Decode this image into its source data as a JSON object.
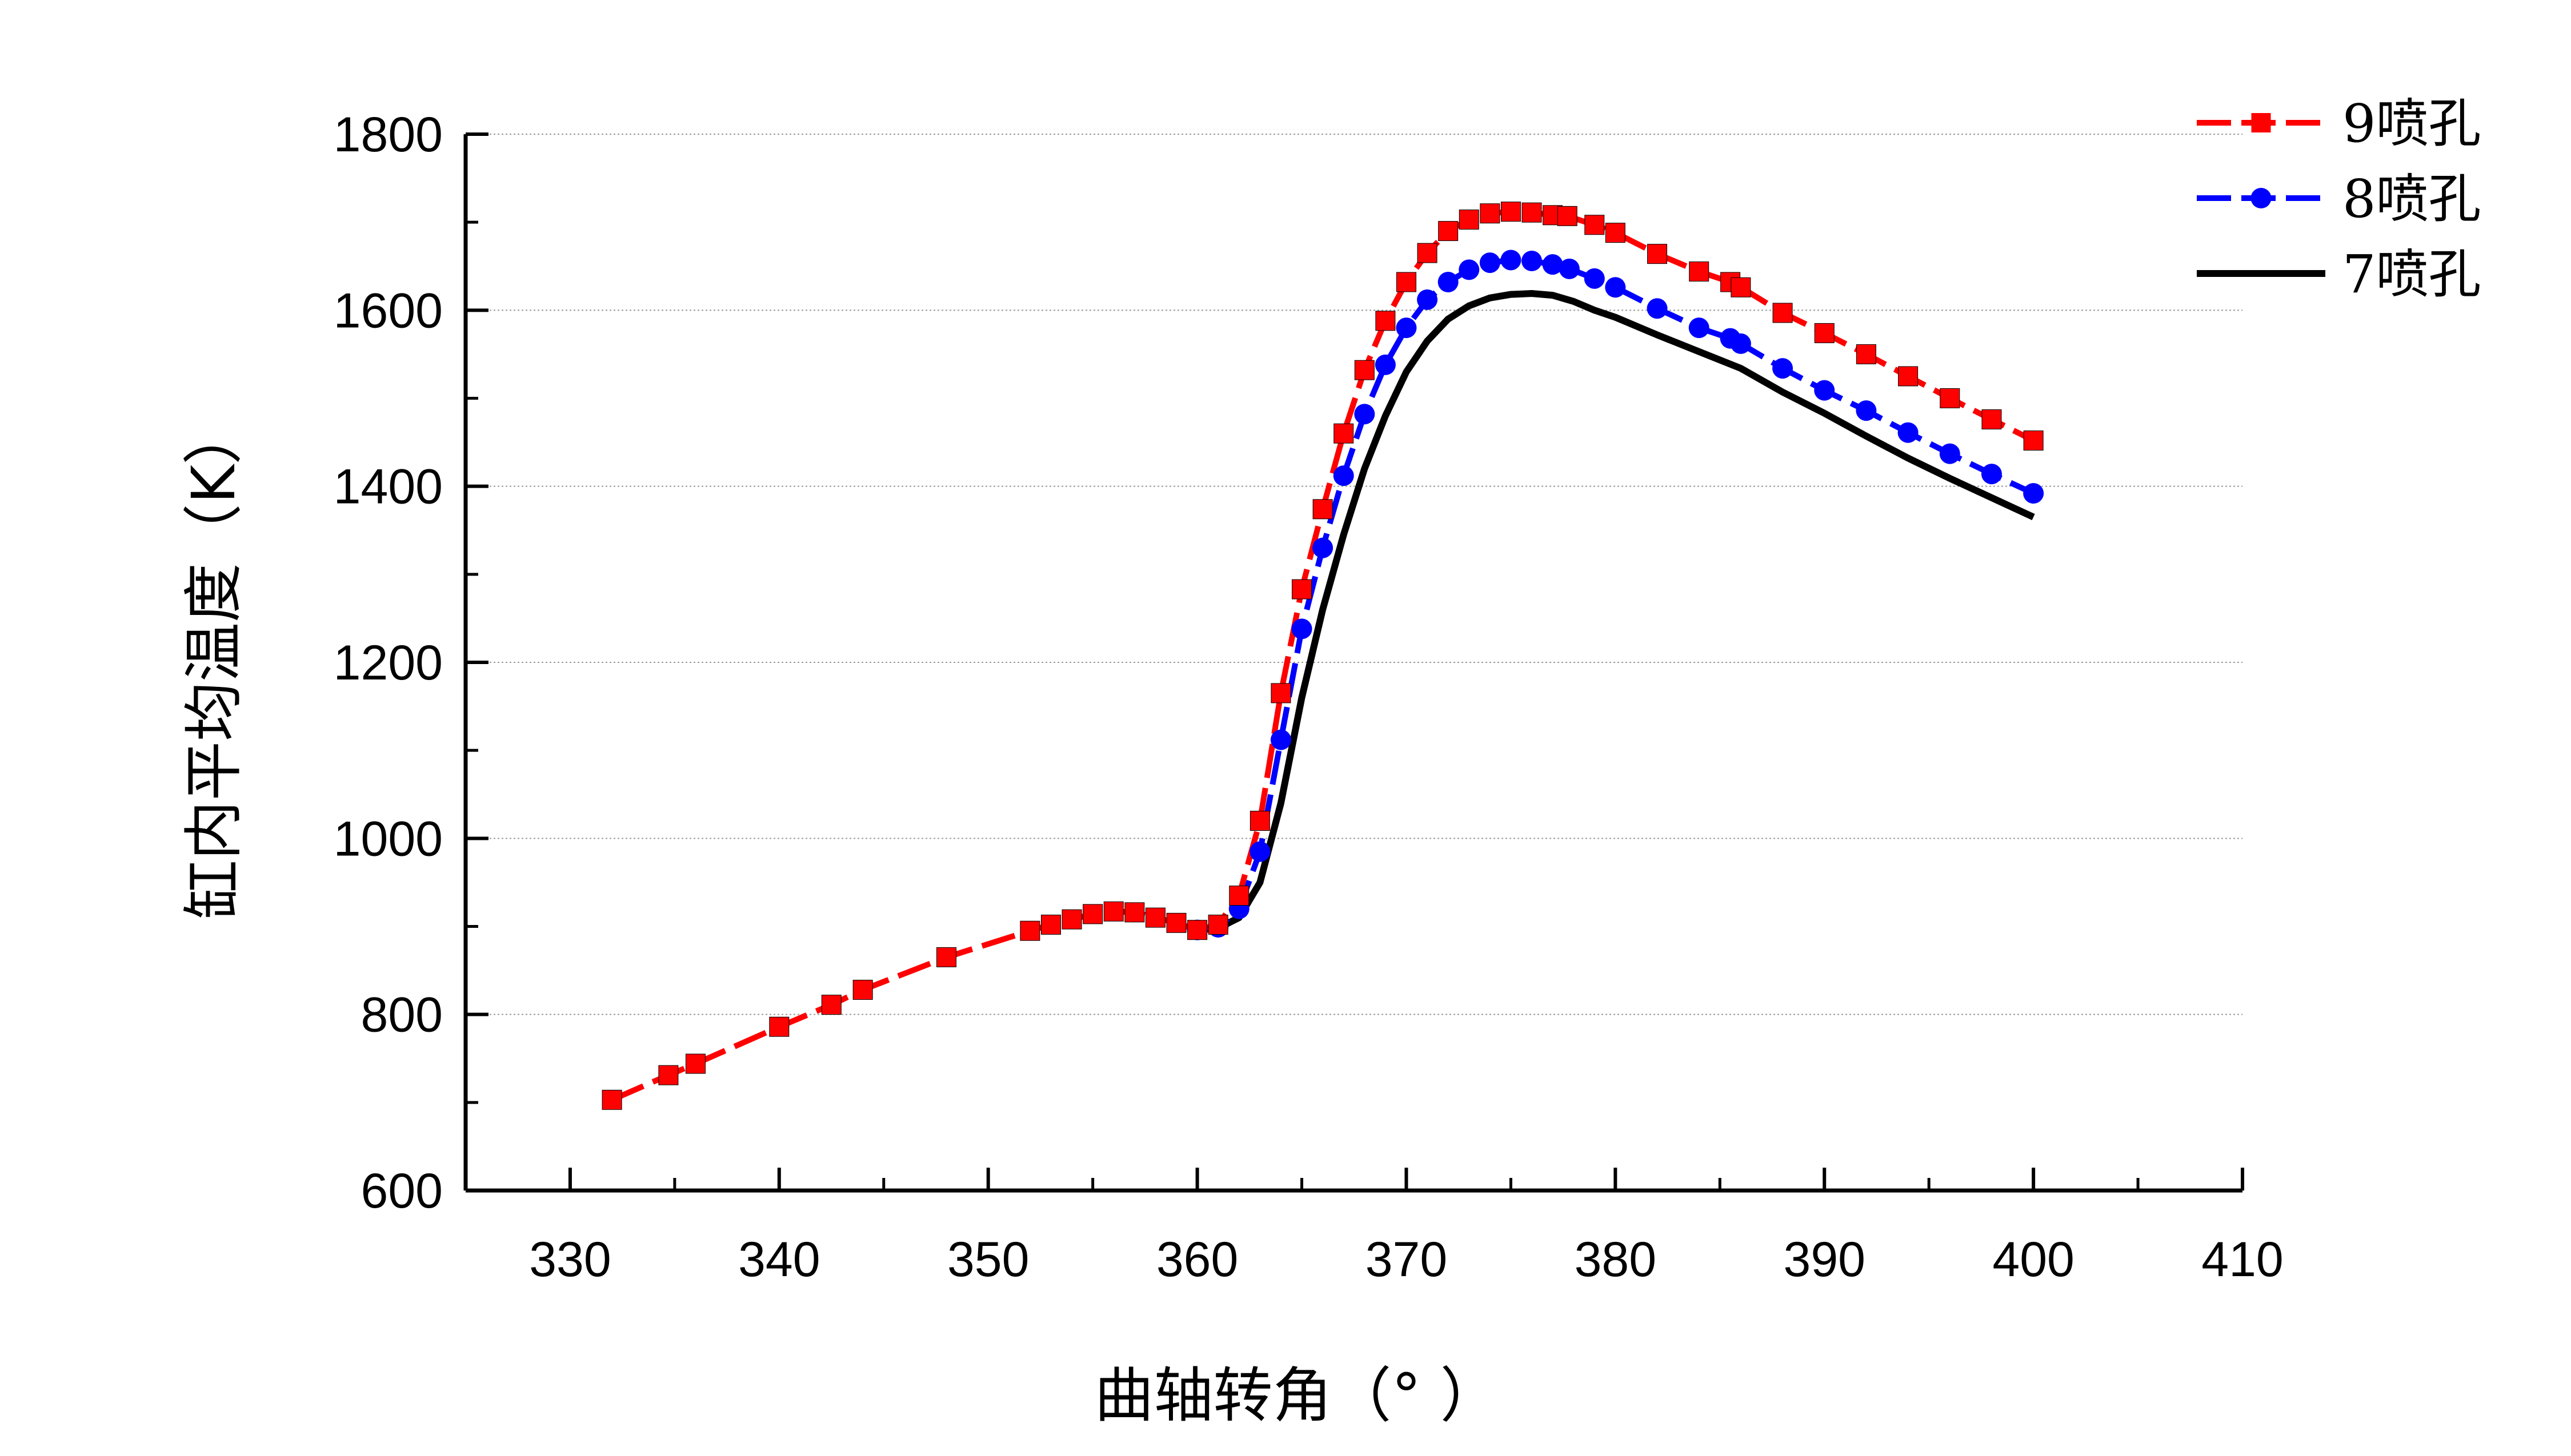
{
  "chart_data": {
    "type": "line",
    "xlabel": "曲轴转角（°  ）",
    "ylabel": "缸内平均温度（K）",
    "xlim": [
      325,
      410
    ],
    "ylim": [
      600,
      1800
    ],
    "x_ticks": [
      330,
      340,
      350,
      360,
      370,
      380,
      390,
      400,
      410
    ],
    "y_ticks": [
      600,
      800,
      1000,
      1200,
      1400,
      1600,
      1800
    ],
    "x_tick_labels": [
      "330",
      "340",
      "350",
      "360",
      "370",
      "380",
      "390",
      "400",
      "410"
    ],
    "y_tick_labels": [
      "600",
      "800",
      "1000",
      "1200",
      "1400",
      "1600",
      "1800"
    ],
    "grid": "horizontal dotted",
    "legend_position": "top-right",
    "series": [
      {
        "name": "9喷孔",
        "color": "#ff0000",
        "marker": "square",
        "line": "dashed",
        "x": [
          332,
          334.7,
          336,
          340,
          342.5,
          344,
          348,
          352,
          353,
          354,
          355,
          356,
          357,
          358,
          359,
          360,
          361,
          362,
          363,
          364,
          365,
          366,
          367,
          368,
          369,
          370,
          371,
          372,
          373,
          374,
          375,
          376,
          377,
          377.7,
          379,
          380,
          382,
          384,
          385.5,
          386,
          388,
          390,
          392,
          394,
          396,
          398,
          400
        ],
        "y": [
          703,
          731,
          744,
          786,
          811,
          828,
          865,
          895,
          902,
          908,
          914,
          917,
          916,
          910,
          904,
          896,
          902,
          935,
          1020,
          1165,
          1283,
          1374,
          1460,
          1532,
          1588,
          1632,
          1665,
          1690,
          1703,
          1710,
          1712,
          1711,
          1708,
          1707,
          1697,
          1688,
          1664,
          1644,
          1632,
          1626,
          1597,
          1574,
          1550,
          1525,
          1500,
          1476,
          1452
        ]
      },
      {
        "name": "8喷孔",
        "color": "#0000ff",
        "marker": "circle",
        "line": "dashed",
        "x": [
          360,
          361,
          362,
          363,
          364,
          365,
          366,
          367,
          368,
          369,
          370,
          371,
          372,
          373,
          374,
          375,
          376,
          377,
          377.8,
          379,
          380,
          382,
          384,
          385.5,
          386,
          388,
          390,
          392,
          394,
          396,
          398,
          400
        ],
        "y": [
          896,
          899,
          920,
          985,
          1112,
          1238,
          1330,
          1412,
          1482,
          1538,
          1580,
          1612,
          1632,
          1646,
          1654,
          1657,
          1656,
          1652,
          1647,
          1636,
          1626,
          1602,
          1580,
          1568,
          1562,
          1534,
          1509,
          1486,
          1461,
          1437,
          1414,
          1392
        ]
      },
      {
        "name": "7喷孔",
        "color": "#000000",
        "marker": "none",
        "line": "solid",
        "x": [
          360,
          361,
          362,
          363,
          364,
          365,
          366,
          367,
          368,
          369,
          370,
          371,
          372,
          373,
          374,
          375,
          376,
          377,
          378,
          379,
          380,
          382,
          384,
          386,
          388,
          390,
          392,
          394,
          396,
          398,
          400
        ],
        "y": [
          896,
          898,
          910,
          950,
          1040,
          1160,
          1260,
          1345,
          1420,
          1480,
          1530,
          1565,
          1590,
          1605,
          1614,
          1618,
          1619,
          1617,
          1610,
          1600,
          1592,
          1572,
          1553,
          1534,
          1507,
          1483,
          1457,
          1432,
          1409,
          1387,
          1365
        ]
      }
    ]
  }
}
